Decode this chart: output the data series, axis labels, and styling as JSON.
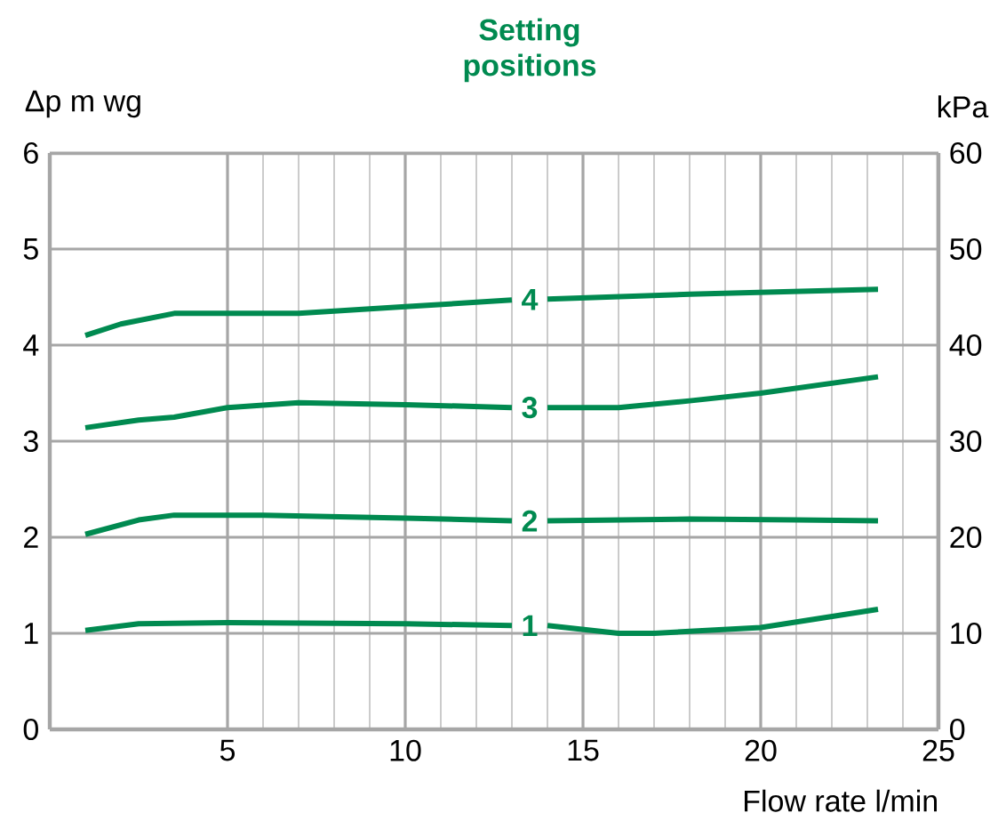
{
  "chart_data": {
    "type": "line",
    "title": "Setting positions",
    "xlabel": "Flow rate l/min",
    "ylabel": "Δp m wg",
    "y2label": "kPa",
    "xlim": [
      0,
      25
    ],
    "xticks": [
      5,
      10,
      15,
      20,
      25
    ],
    "ylim": [
      0,
      6
    ],
    "yticks": [
      0,
      1,
      2,
      3,
      4,
      5,
      6
    ],
    "y2lim": [
      0,
      60
    ],
    "y2ticks": [
      0,
      10,
      20,
      30,
      40,
      50,
      60
    ],
    "grid": true,
    "series": [
      {
        "name": "1",
        "color": "#008a50",
        "x": [
          1,
          2.5,
          5,
          10,
          13,
          13.5,
          14,
          16,
          17,
          20,
          23.3
        ],
        "values": [
          1.03,
          1.1,
          1.11,
          1.1,
          1.08,
          null,
          1.08,
          1.0,
          1.0,
          1.06,
          1.25
        ]
      },
      {
        "name": "2",
        "color": "#008a50",
        "x": [
          1,
          2.5,
          3.5,
          6,
          10,
          13,
          13.5,
          14,
          18,
          21,
          23.3
        ],
        "values": [
          2.03,
          2.18,
          2.23,
          2.23,
          2.2,
          2.17,
          null,
          2.17,
          2.19,
          2.18,
          2.17
        ]
      },
      {
        "name": "3",
        "color": "#008a50",
        "x": [
          1,
          2.5,
          3.5,
          5,
          7,
          10,
          13,
          13.5,
          14,
          16,
          18,
          20,
          23.3
        ],
        "values": [
          3.14,
          3.22,
          3.25,
          3.35,
          3.4,
          3.38,
          3.35,
          null,
          3.35,
          3.35,
          3.42,
          3.5,
          3.67
        ]
      },
      {
        "name": "4",
        "color": "#008a50",
        "x": [
          1,
          2,
          3.5,
          7,
          10,
          13,
          13.5,
          14,
          18,
          23.3
        ],
        "values": [
          4.1,
          4.22,
          4.33,
          4.33,
          4.4,
          4.47,
          null,
          4.48,
          4.53,
          4.58
        ]
      }
    ]
  }
}
